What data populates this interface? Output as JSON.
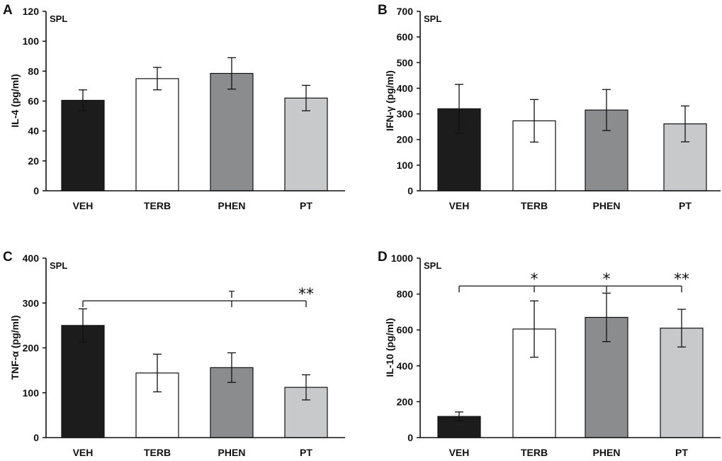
{
  "chart_data": [
    {
      "type": "bar",
      "panel": "A",
      "inset_label": "SPL",
      "ylabel": "IL-4 (pg/ml)",
      "ylim": [
        0,
        120
      ],
      "yticks": [
        0,
        20,
        40,
        60,
        80,
        100,
        120
      ],
      "categories": [
        "VEH",
        "TERB",
        "PHEN",
        "PT"
      ],
      "values": [
        60.5,
        75,
        78.5,
        62
      ],
      "errors": [
        7,
        7.5,
        10.5,
        8.5
      ],
      "colors": [
        "#1c1c1c",
        "#ffffff",
        "#8b8c8e",
        "#c8c9cb"
      ],
      "significance": null
    },
    {
      "type": "bar",
      "panel": "B",
      "inset_label": "SPL",
      "ylabel": "IFN-γ (pg/ml)",
      "ylim": [
        0,
        700
      ],
      "yticks": [
        0,
        100,
        200,
        300,
        400,
        500,
        600,
        700
      ],
      "categories": [
        "VEH",
        "TERB",
        "PHEN",
        "PT"
      ],
      "values": [
        320,
        273,
        315,
        261
      ],
      "errors": [
        95,
        83,
        80,
        70
      ],
      "colors": [
        "#1c1c1c",
        "#ffffff",
        "#8b8c8e",
        "#c8c9cb"
      ],
      "significance": null
    },
    {
      "type": "bar",
      "panel": "C",
      "inset_label": "SPL",
      "ylabel": "TNF-α (pg/ml)",
      "ylim": [
        0,
        400
      ],
      "yticks": [
        0,
        100,
        200,
        300,
        400
      ],
      "categories": [
        "VEH",
        "TERB",
        "PHEN",
        "PT"
      ],
      "values": [
        250,
        144,
        156,
        112
      ],
      "errors": [
        37,
        42,
        33,
        28
      ],
      "colors": [
        "#1c1c1c",
        "#ffffff",
        "#8b8c8e",
        "#c8c9cb"
      ],
      "significance": {
        "level": 305,
        "from": 0,
        "to": [
          2,
          3
        ],
        "marks": [
          {
            "index": 2,
            "symbol": "T"
          },
          {
            "index": 3,
            "symbol": "**"
          }
        ]
      }
    },
    {
      "type": "bar",
      "panel": "D",
      "inset_label": "SPL",
      "ylabel": "IL-10 (pg/ml)",
      "ylim": [
        0,
        1000
      ],
      "yticks": [
        0,
        200,
        400,
        600,
        800,
        1000
      ],
      "categories": [
        "VEH",
        "TERB",
        "PHEN",
        "PT"
      ],
      "values": [
        118,
        605,
        670,
        610
      ],
      "errors": [
        25,
        157,
        135,
        105
      ],
      "colors": [
        "#1c1c1c",
        "#ffffff",
        "#8b8c8e",
        "#c8c9cb"
      ],
      "significance": {
        "level": 845,
        "from": 0,
        "to": [
          1,
          2,
          3
        ],
        "marks": [
          {
            "index": 1,
            "symbol": "*"
          },
          {
            "index": 2,
            "symbol": "*"
          },
          {
            "index": 3,
            "symbol": "**"
          }
        ]
      }
    }
  ]
}
